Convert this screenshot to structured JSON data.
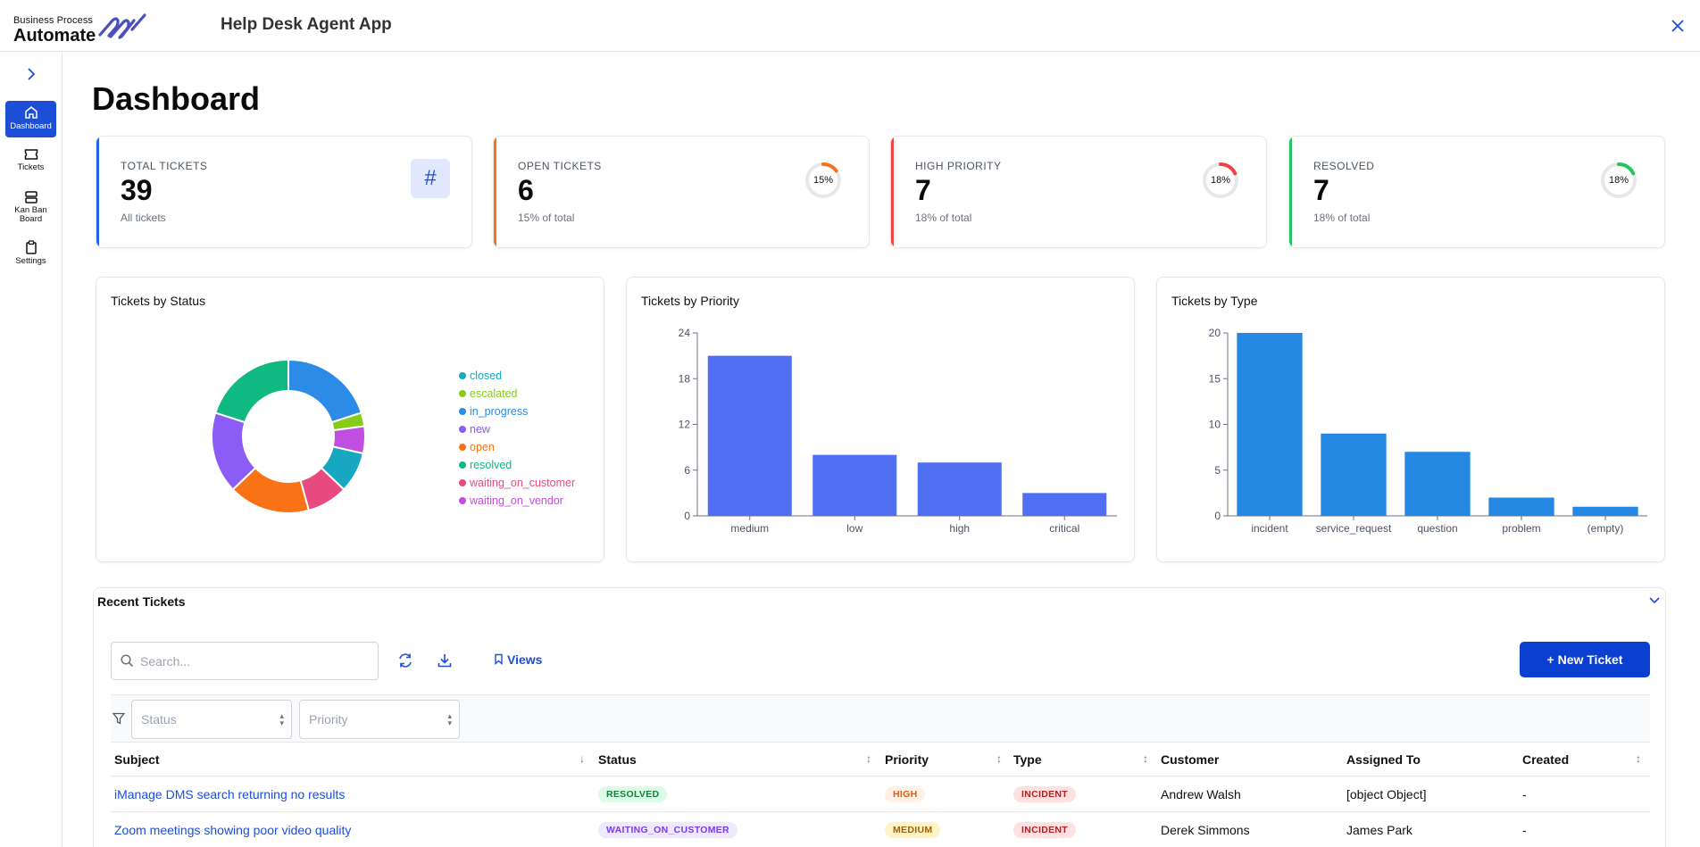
{
  "header": {
    "logo_small": "Business Process",
    "logo_big": "Automate",
    "app_title": "Help Desk Agent App",
    "close_label": "✕"
  },
  "sidebar": {
    "items": [
      {
        "label": "Dashboard",
        "icon": "home-icon",
        "active": true
      },
      {
        "label": "Tickets",
        "icon": "ticket-icon",
        "active": false
      },
      {
        "label": "Kan Ban Board",
        "icon": "kanban-icon",
        "active": false
      },
      {
        "label": "Settings",
        "icon": "clipboard-icon",
        "active": false
      }
    ]
  },
  "page_title": "Dashboard",
  "stats": [
    {
      "label": "TOTAL TICKETS",
      "value": "39",
      "sub": "All tickets",
      "color": "#2563eb",
      "icon": "#"
    },
    {
      "label": "OPEN TICKETS",
      "value": "6",
      "sub": "15% of total",
      "color": "#f97316",
      "percent": 15,
      "percent_label": "15%"
    },
    {
      "label": "HIGH PRIORITY",
      "value": "7",
      "sub": "18% of total",
      "color": "#ef4444",
      "percent": 18,
      "percent_label": "18%"
    },
    {
      "label": "RESOLVED",
      "value": "7",
      "sub": "18% of total",
      "color": "#22c55e",
      "percent": 18,
      "percent_label": "18%"
    }
  ],
  "chart_data": [
    {
      "type": "pie",
      "title": "Tickets by Status",
      "categories": [
        "closed",
        "escalated",
        "in_progress",
        "new",
        "open",
        "resolved",
        "waiting_on_customer",
        "waiting_on_vendor"
      ],
      "slices": [
        {
          "name": "in_progress",
          "value": 7,
          "color": "#2b8be6"
        },
        {
          "name": "escalated",
          "value": 1,
          "color": "#84cc16"
        },
        {
          "name": "waiting_on_vendor",
          "value": 2,
          "color": "#c04ee0"
        },
        {
          "name": "closed",
          "value": 3,
          "color": "#17a7c0"
        },
        {
          "name": "waiting_on_customer",
          "value": 3,
          "color": "#e84a7f"
        },
        {
          "name": "open",
          "value": 6,
          "color": "#f97316"
        },
        {
          "name": "new",
          "value": 6,
          "color": "#8b5cf6"
        },
        {
          "name": "resolved",
          "value": 7,
          "color": "#10b981"
        }
      ],
      "legend": [
        {
          "name": "closed",
          "color": "#17a7c0"
        },
        {
          "name": "escalated",
          "color": "#84cc16"
        },
        {
          "name": "in_progress",
          "color": "#2b8be6"
        },
        {
          "name": "new",
          "color": "#8b5cf6"
        },
        {
          "name": "open",
          "color": "#f97316"
        },
        {
          "name": "resolved",
          "color": "#10b981"
        },
        {
          "name": "waiting_on_customer",
          "color": "#e84a7f"
        },
        {
          "name": "waiting_on_vendor",
          "color": "#c04ee0"
        }
      ],
      "legend_position": "right"
    },
    {
      "type": "bar",
      "title": "Tickets by Priority",
      "categories": [
        "medium",
        "low",
        "high",
        "critical"
      ],
      "values": [
        21,
        8,
        7,
        3
      ],
      "ylim": [
        0,
        24
      ],
      "yticks": [
        0,
        6,
        12,
        18,
        24
      ],
      "color": "#4f6ef2"
    },
    {
      "type": "bar",
      "title": "Tickets by Type",
      "categories": [
        "incident",
        "service_request",
        "question",
        "problem",
        "(empty)"
      ],
      "values": [
        20,
        9,
        7,
        2,
        1
      ],
      "ylim": [
        0,
        20
      ],
      "yticks": [
        0,
        5,
        10,
        15,
        20
      ],
      "color": "#2589e3"
    }
  ],
  "recent": {
    "title": "Recent Tickets",
    "search_placeholder": "Search...",
    "views_label": "Views",
    "new_ticket_label": "+ New Ticket",
    "filters": {
      "status_placeholder": "Status",
      "priority_placeholder": "Priority"
    },
    "columns": [
      "Subject",
      "Status",
      "Priority",
      "Type",
      "Customer",
      "Assigned To",
      "Created"
    ],
    "rows": [
      {
        "subject": "iManage DMS search returning no results",
        "status": "RESOLVED",
        "priority": "HIGH",
        "type": "INCIDENT",
        "customer": "Andrew Walsh",
        "assigned": "[object Object]",
        "created": "-"
      },
      {
        "subject": "Zoom meetings showing poor video quality",
        "status": "WAITING_ON_CUSTOMER",
        "priority": "MEDIUM",
        "type": "INCIDENT",
        "customer": "Derek Simmons",
        "assigned": "James Park",
        "created": "-"
      }
    ]
  }
}
